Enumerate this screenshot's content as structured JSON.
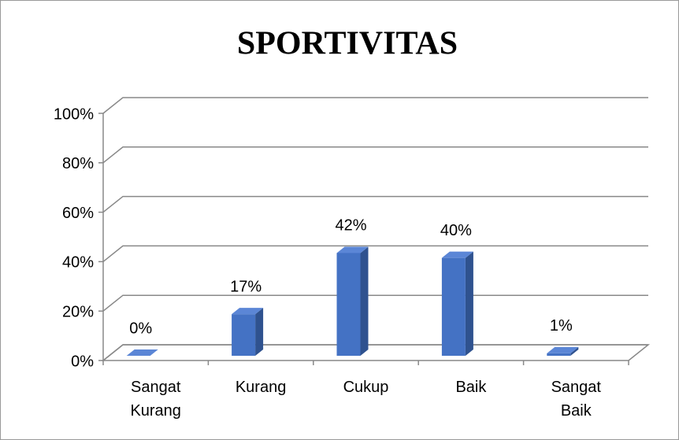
{
  "chart_data": {
    "type": "bar3d",
    "title": "SPORTIVITAS",
    "categories": [
      "Sangat Kurang",
      "Kurang",
      "Cukup",
      "Baik",
      "Sangat Baik"
    ],
    "values": [
      0,
      17,
      42,
      40,
      1
    ],
    "value_labels": [
      "0%",
      "17%",
      "42%",
      "40%",
      "1%"
    ],
    "color": "#4472c4",
    "ylim": [
      0,
      100
    ],
    "yticks": [
      {
        "value": 0,
        "label": "0%"
      },
      {
        "value": 20,
        "label": "20%"
      },
      {
        "value": 40,
        "label": "40%"
      },
      {
        "value": 60,
        "label": "60%"
      },
      {
        "value": 80,
        "label": "80%"
      },
      {
        "value": 100,
        "label": "100%"
      }
    ],
    "grid": true
  }
}
